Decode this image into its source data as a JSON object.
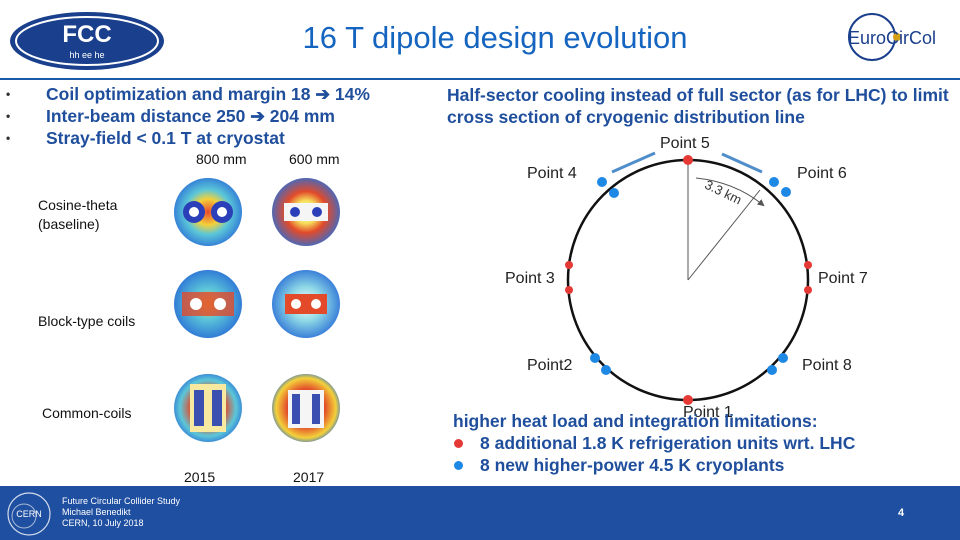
{
  "header": {
    "title": "16 T dipole design evolution",
    "fcc_logo_top": "FCC",
    "fcc_logo_bottom": "hh ee he",
    "euro_logo": "EuroCirCol"
  },
  "left": {
    "bullets": [
      "Coil optimization and margin 18 ➔ 14%",
      "Inter-beam distance 250 ➔ 204 mm",
      "Stray-field < 0.1 T at cryostat"
    ],
    "col_labels": [
      "800 mm",
      "600 mm"
    ],
    "row_labels": [
      "Cosine-theta\n(baseline)",
      "Block-type coils",
      "Common-coils"
    ],
    "year_labels": [
      "2015",
      "2017"
    ]
  },
  "right": {
    "cooling_text": "Half-sector cooling instead of full sector (as for LHC) to limit cross section of cryogenic distribution line",
    "points": [
      "Point 5",
      "Point 4",
      "Point 6",
      "Point 3",
      "Point 7",
      "Point2",
      "Point 8",
      "Point 1"
    ],
    "distance_label": "3.3 km",
    "heat_title": "higher heat load and integration limitations:",
    "heat_items": [
      {
        "text": "8 additional 1.8 K refrigeration units wrt. LHC",
        "color": "#e53935"
      },
      {
        "text": "8 new higher-power 4.5 K cryoplants",
        "color": "#1e88e5"
      }
    ]
  },
  "footer": {
    "line1": "Future Circular Collider Study",
    "line2": "Michael Benedikt",
    "line3": "CERN, 10 July 2018",
    "page_number": "4",
    "cern_logo": "CERN"
  }
}
